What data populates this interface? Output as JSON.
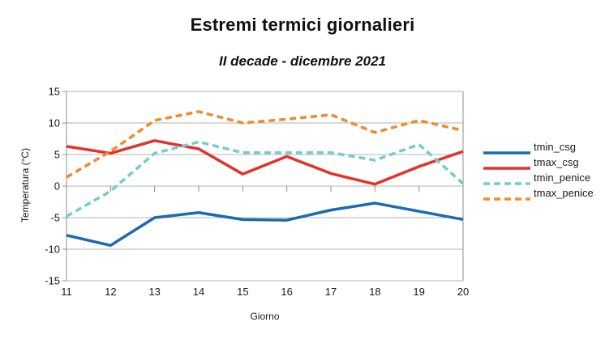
{
  "title": "Estremi termici giornalieri",
  "subtitle": "II decade - dicembre 2021",
  "chart_data": {
    "type": "line",
    "x": [
      11,
      12,
      13,
      14,
      15,
      16,
      17,
      18,
      19,
      20
    ],
    "xlabel": "Giorno",
    "ylabel": "Temperatura (°C)",
    "ylim": [
      -15,
      15
    ],
    "ytick_step": 5,
    "yticks": [
      15,
      10,
      5,
      0,
      -5,
      -10,
      -15
    ],
    "grid": true,
    "legend_position": "right",
    "series": [
      {
        "name": "tmin_csg",
        "color": "#1c6ab2",
        "dash": "solid",
        "values": [
          -7.8,
          -9.4,
          -5.0,
          -4.2,
          -5.3,
          -5.4,
          -3.8,
          -2.7,
          -4.0,
          -5.3
        ]
      },
      {
        "name": "tmax_csg",
        "color": "#e5312b",
        "dash": "solid",
        "values": [
          6.3,
          5.2,
          7.2,
          5.9,
          1.9,
          4.7,
          2.0,
          0.3,
          3.1,
          5.5
        ]
      },
      {
        "name": "tmin_penice",
        "color": "#74cdc9",
        "dash": "dashed",
        "values": [
          -4.8,
          -0.8,
          5.2,
          7.0,
          5.3,
          5.3,
          5.3,
          4.1,
          6.6,
          0.4
        ]
      },
      {
        "name": "tmax_penice",
        "color": "#f08b2d",
        "dash": "dashed",
        "values": [
          1.4,
          5.5,
          10.4,
          11.8,
          10.0,
          10.6,
          11.3,
          8.5,
          10.4,
          8.8
        ]
      }
    ],
    "colors": {
      "gridline": "#b4b4b4",
      "axis": "#8f8f8f",
      "text": "#1a1a1a"
    }
  }
}
